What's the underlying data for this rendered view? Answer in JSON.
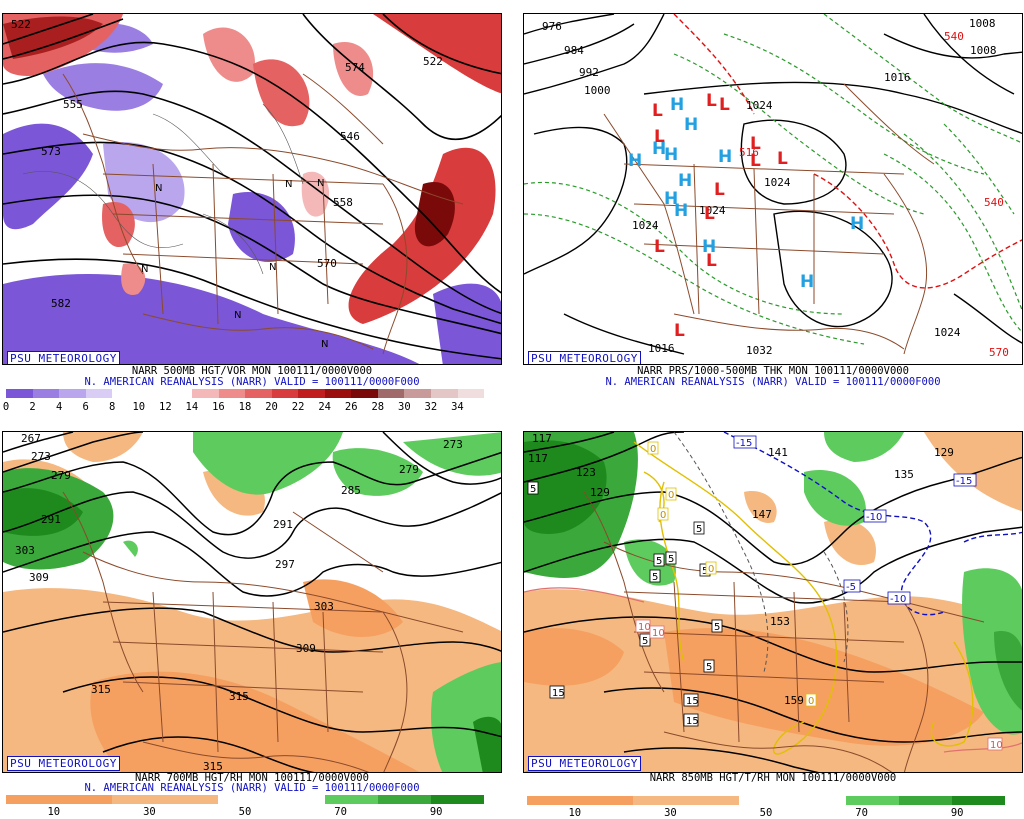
{
  "panels": [
    {
      "id": "vor500",
      "badge": "PSU METEOROLOGY",
      "caption_line1": "NARR 500MB HGT/VOR MON 100111/0000V000",
      "caption_line2": "N. AMERICAN REANALYSIS (NARR) VALID = 100111/0000F000",
      "colorbar_colors": [
        "#7b56d6",
        "#9b7ee2",
        "#b9a6ec",
        "#d9cdf5",
        "#ffffff",
        "#ffffff",
        "#ffffff",
        "#f5b8b8",
        "#ee8c8c",
        "#e46262",
        "#d83c3c",
        "#c01e1e",
        "#9a0e0e",
        "#7a0a0a",
        "#a06a6a",
        "#c89a9a",
        "#e5c6c6",
        "#f0dede"
      ],
      "colorbar_ticks": [
        "0",
        "2",
        "4",
        "6",
        "8",
        "10",
        "12",
        "14",
        "16",
        "18",
        "20",
        "22",
        "24",
        "26",
        "28",
        "30",
        "32",
        "34"
      ],
      "contour_labels": [
        "552",
        "555",
        "573",
        "574",
        "546",
        "522",
        "558",
        "570",
        "582"
      ],
      "marks": [
        "N",
        "N",
        "N",
        "N",
        "N",
        "N",
        "N"
      ]
    },
    {
      "id": "prs",
      "badge": "PSU METEOROLOGY",
      "caption_line1": "NARR PRS/1000-500MB THK MON 100111/0000V000",
      "caption_line2": "N. AMERICAN REANALYSIS (NARR) VALID = 100111/0000F000",
      "contour_labels": [
        "976",
        "984",
        "992",
        "1000",
        "1016",
        "1024",
        "1008",
        "1016",
        "1024",
        "1024",
        "1032",
        "1016",
        "1024",
        "1024",
        "540",
        "570",
        "540",
        "516"
      ],
      "highs": [
        "H",
        "H",
        "H",
        "H",
        "H",
        "H",
        "H",
        "H",
        "H",
        "H",
        "H",
        "H"
      ],
      "lows": [
        "L",
        "L",
        "L",
        "L",
        "L",
        "L",
        "L",
        "L",
        "L",
        "L",
        "L",
        "L"
      ]
    },
    {
      "id": "rh700",
      "badge": "PSU METEOROLOGY",
      "caption_line1": "NARR 700MB HGT/RH MON 100111/0000V000",
      "caption_line2": "N. AMERICAN REANALYSIS (NARR) VALID = 100111/0000F000",
      "colorbar_colors": [
        "#f5a060",
        "#f5a060",
        "#f5b880",
        "#f5b880",
        "#ffffff",
        "#ffffff",
        "#5ecb5e",
        "#3aa83a",
        "#1e8a1e"
      ],
      "colorbar_ticks": [
        "10",
        "30",
        "50",
        "70",
        "90"
      ],
      "contour_labels": [
        "267",
        "273",
        "279",
        "291",
        "303",
        "309",
        "285",
        "291",
        "297",
        "303",
        "309",
        "315",
        "315",
        "315",
        "273",
        "279"
      ]
    },
    {
      "id": "t850",
      "badge": "PSU METEOROLOGY",
      "caption_line1": "NARR 850MB HGT/T/RH MON 100111/0000V000",
      "colorbar_colors": [
        "#f5a060",
        "#f5a060",
        "#f5b880",
        "#f5b880",
        "#ffffff",
        "#ffffff",
        "#5ecb5e",
        "#3aa83a",
        "#1e8a1e"
      ],
      "colorbar_ticks": [
        "10",
        "30",
        "50",
        "70",
        "90"
      ],
      "contour_labels": [
        "117",
        "123",
        "129",
        "135",
        "141",
        "147",
        "153",
        "159",
        "129",
        "135"
      ],
      "temp_labels": [
        "5",
        "5",
        "5",
        "5",
        "5",
        "5",
        "5",
        "5",
        "15",
        "15",
        "15",
        "10",
        "10",
        "-15",
        "-15",
        "-5",
        "-10",
        "-10",
        "0",
        "0",
        "0",
        "0",
        "0",
        "10",
        "-5"
      ]
    }
  ]
}
